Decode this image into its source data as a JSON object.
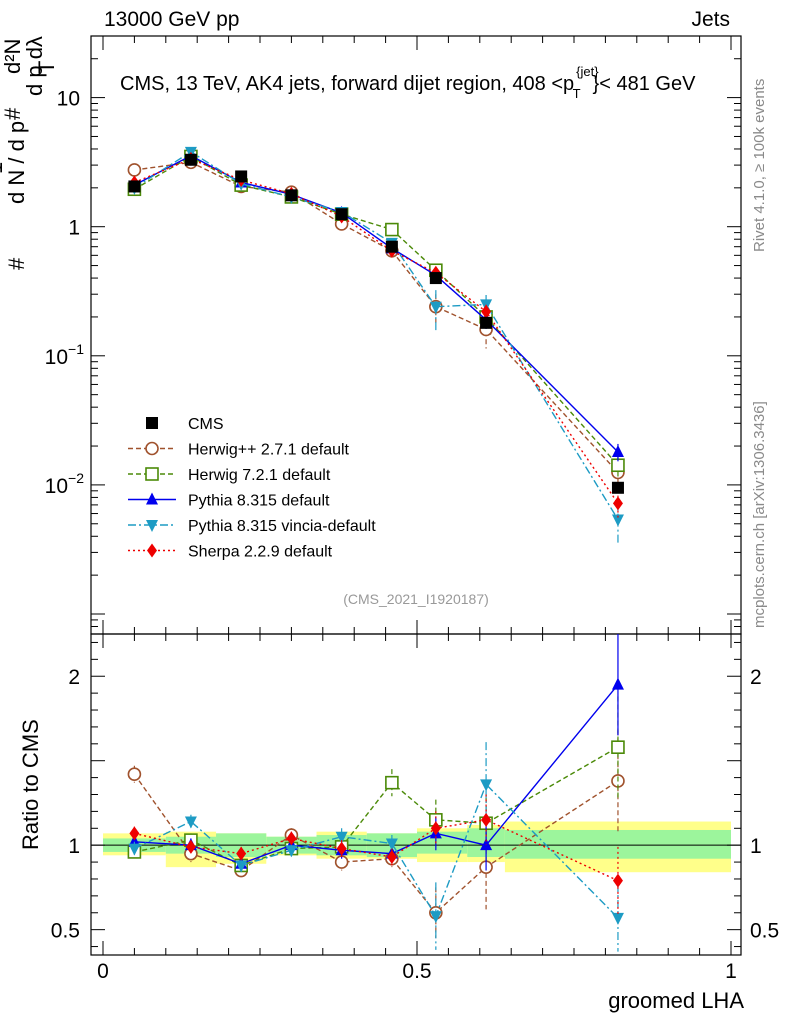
{
  "header": {
    "left": "13000 GeV pp",
    "right": "Jets"
  },
  "side": {
    "rivet": "Rivet 4.1.0, ≥ 100k events",
    "mcplots": "mcplots.cern.ch [arXiv:1306.3436]"
  },
  "chart_data": {
    "type": "line",
    "title": "CMS, 13 TeV, AK4 jets, forward dijet region, 408 <p_T^{jet}< 481 GeV",
    "title_parts": {
      "main": "CMS, 13 TeV, AK4 jets, forward dijet region, 408 <p",
      "sup": "{jet}",
      "sub": "T",
      "tail": "}< 481 GeV"
    },
    "reference": "(CMS_2021_I1920187)",
    "xlabel": "groomed LHA",
    "ylabel": "1/N dN/dp_T dλ",
    "ylabel_parts": {
      "line1": "1",
      "line2": "d N / d p",
      "hash": "#",
      "num": "d²N",
      "den": "d p  dλ",
      "sub": "T"
    },
    "ratio_ylabel": "Ratio to CMS",
    "xlim": [
      0,
      1
    ],
    "ylim_main": [
      0.0007,
      30
    ],
    "ylim_ratio": [
      0.35,
      2.25
    ],
    "x_ticks": [
      "0",
      "0.5",
      "1"
    ],
    "x_tick_values": [
      0,
      0.5,
      1
    ],
    "y_ticks_main": [
      {
        "value": 10,
        "base": "10",
        "exp": ""
      },
      {
        "value": 1,
        "base": "1",
        "exp": ""
      },
      {
        "value": 0.1,
        "base": "10",
        "exp": "−1"
      },
      {
        "value": 0.01,
        "base": "10",
        "exp": "−2"
      }
    ],
    "y_ticks_ratio": [
      {
        "value": 2,
        "label": "2"
      },
      {
        "value": 1,
        "label": "1"
      },
      {
        "value": 0.5,
        "label": "0.5"
      }
    ],
    "bin_edges": [
      0,
      0.1,
      0.18,
      0.26,
      0.34,
      0.42,
      0.5,
      0.58,
      0.64,
      1.0
    ],
    "x": [
      0.05,
      0.14,
      0.22,
      0.3,
      0.38,
      0.46,
      0.53,
      0.61,
      0.82
    ],
    "data": {
      "name": "CMS",
      "values": [
        2.05,
        3.3,
        2.45,
        1.75,
        1.25,
        0.7,
        0.4,
        0.18,
        0.0095
      ],
      "band_inner": [
        [
          0.96,
          1.04
        ],
        [
          0.95,
          1.05
        ],
        [
          0.93,
          1.07
        ],
        [
          0.95,
          1.05
        ],
        [
          0.94,
          1.06
        ],
        [
          0.93,
          1.07
        ],
        [
          0.95,
          1.08
        ],
        [
          0.93,
          1.1
        ],
        [
          0.92,
          1.09
        ]
      ],
      "band_outer": [
        [
          0.94,
          1.07
        ],
        [
          0.87,
          1.08
        ],
        [
          0.89,
          1.07
        ],
        [
          0.94,
          1.05
        ],
        [
          0.92,
          1.08
        ],
        [
          0.92,
          1.07
        ],
        [
          0.9,
          1.1
        ],
        [
          0.9,
          1.12
        ],
        [
          0.84,
          1.14
        ]
      ]
    },
    "series": [
      {
        "name": "Herwig++ 2.7.1 default",
        "color": "#a0522d",
        "marker": "circle-open",
        "dash": "5,3",
        "values": [
          2.75,
          3.15,
          2.05,
          1.85,
          1.05,
          0.65,
          0.24,
          0.16,
          0.0125
        ],
        "ratio": [
          1.42,
          0.95,
          0.85,
          1.06,
          0.9,
          0.92,
          0.6,
          0.87,
          1.38
        ],
        "ratio_err": [
          0.05,
          0.05,
          0.04,
          0.04,
          0.05,
          0.05,
          0.15,
          0.25,
          0.3
        ]
      },
      {
        "name": "Herwig 7.2.1 default",
        "color": "#4b8a08",
        "marker": "square-open",
        "dash": "5,3",
        "values": [
          1.95,
          3.5,
          2.1,
          1.7,
          1.25,
          0.95,
          0.46,
          0.2,
          0.0142
        ],
        "ratio": [
          0.96,
          1.03,
          0.88,
          0.98,
          0.99,
          1.37,
          1.15,
          1.13,
          1.58
        ],
        "ratio_err": [
          0.04,
          0.04,
          0.04,
          0.04,
          0.05,
          0.08,
          0.12,
          0.15,
          0.3
        ]
      },
      {
        "name": "Pythia 8.315 default",
        "color": "#0000ee",
        "marker": "triangle-up",
        "dash": "",
        "values": [
          2.1,
          3.55,
          2.2,
          1.78,
          1.28,
          0.68,
          0.42,
          0.19,
          0.018
        ],
        "ratio": [
          1.02,
          1.0,
          0.89,
          1.0,
          0.97,
          0.95,
          1.07,
          1.0,
          1.95
        ],
        "ratio_err": [
          0.04,
          0.04,
          0.04,
          0.04,
          0.05,
          0.05,
          0.1,
          0.15,
          0.3
        ]
      },
      {
        "name": "Pythia 8.315 vincia-default",
        "color": "#1d9bc4",
        "marker": "triangle-down",
        "dash": "8,3,2,3",
        "values": [
          2.0,
          3.8,
          2.15,
          1.7,
          1.3,
          0.75,
          0.24,
          0.25,
          0.0054
        ],
        "ratio": [
          0.98,
          1.14,
          0.88,
          0.97,
          1.05,
          1.01,
          0.58,
          1.36,
          0.57
        ],
        "ratio_err": [
          0.04,
          0.04,
          0.04,
          0.04,
          0.05,
          0.05,
          0.2,
          0.25,
          0.2
        ]
      },
      {
        "name": "Sherpa 2.2.9 default",
        "color": "#ee0000",
        "marker": "diamond",
        "dash": "2,3",
        "values": [
          2.2,
          3.35,
          2.3,
          1.8,
          1.2,
          0.65,
          0.44,
          0.22,
          0.0072
        ],
        "ratio": [
          1.07,
          0.99,
          0.95,
          1.04,
          0.98,
          0.93,
          1.1,
          1.15,
          0.79
        ],
        "ratio_err": [
          0.04,
          0.04,
          0.04,
          0.04,
          0.05,
          0.05,
          0.1,
          0.15,
          0.2
        ]
      }
    ]
  }
}
